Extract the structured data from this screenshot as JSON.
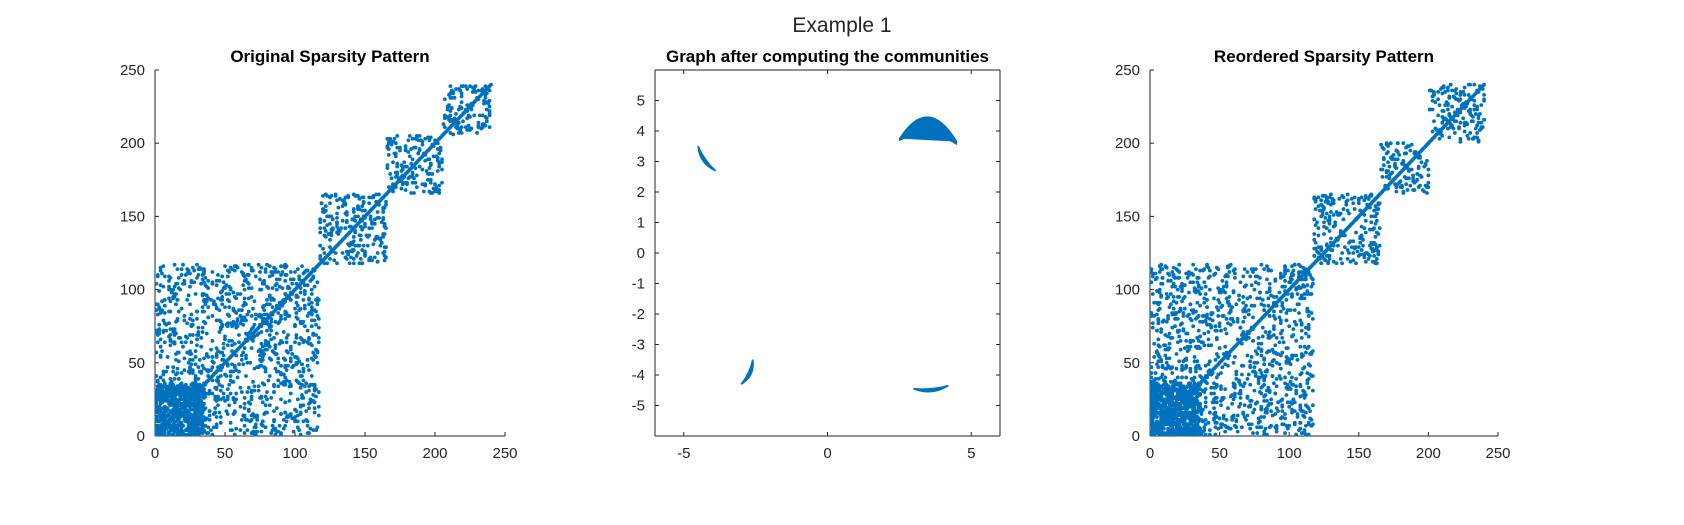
{
  "figure": {
    "title": "Example 1"
  },
  "colors": {
    "marker": "#0072BD",
    "axis": "#262626",
    "background": "#ffffff"
  },
  "chart_data": [
    {
      "type": "scatter",
      "title": "Original Sparsity Pattern",
      "xlabel": "",
      "ylabel": "",
      "xlim": [
        0,
        250
      ],
      "ylim": [
        0,
        250
      ],
      "xticks": [
        0,
        50,
        100,
        150,
        200,
        250
      ],
      "yticks": [
        0,
        50,
        100,
        150,
        200,
        250
      ],
      "box": "left-bottom",
      "grid": false,
      "blocks": [
        {
          "range": [
            1,
            117
          ],
          "density": 0.55
        },
        {
          "range": [
            118,
            165
          ],
          "density": 0.42
        },
        {
          "range": [
            166,
            205
          ],
          "density": 0.42
        },
        {
          "range": [
            206,
            240
          ],
          "density": 0.42
        }
      ]
    },
    {
      "type": "line",
      "title": "Graph after computing the communities",
      "xlabel": "",
      "ylabel": "",
      "xlim": [
        -6,
        6
      ],
      "ylim": [
        -6,
        6
      ],
      "xticks": [
        -5,
        0,
        5
      ],
      "yticks": [
        -5,
        -4,
        -3,
        -2,
        -1,
        0,
        1,
        2,
        3,
        4,
        5
      ],
      "box": "full",
      "grid": false,
      "communities": [
        {
          "name": "top-left cluster",
          "from": [
            -4.5,
            3.5
          ],
          "to": [
            -3.9,
            2.7
          ]
        },
        {
          "name": "top-right cluster",
          "from": [
            2.5,
            3.75
          ],
          "to": [
            4.5,
            3.65
          ],
          "peak_y": 4.5
        },
        {
          "name": "bottom-left cluster",
          "from": [
            -3,
            -4.3
          ],
          "to": [
            -2.6,
            -3.5
          ]
        },
        {
          "name": "bottom-right cluster",
          "from": [
            3,
            -4.45
          ],
          "to": [
            4.2,
            -4.35
          ]
        }
      ]
    },
    {
      "type": "scatter",
      "title": "Reordered Sparsity Pattern",
      "xlabel": "",
      "ylabel": "",
      "xlim": [
        0,
        250
      ],
      "ylim": [
        0,
        250
      ],
      "xticks": [
        0,
        50,
        100,
        150,
        200,
        250
      ],
      "yticks": [
        0,
        50,
        100,
        150,
        200,
        250
      ],
      "box": "left-bottom",
      "grid": false,
      "blocks": [
        {
          "range": [
            1,
            117
          ],
          "density": 0.55
        },
        {
          "range": [
            118,
            165
          ],
          "density": 0.42
        },
        {
          "range": [
            166,
            200
          ],
          "density": 0.42
        },
        {
          "range": [
            201,
            240
          ],
          "density": 0.42
        }
      ]
    }
  ]
}
